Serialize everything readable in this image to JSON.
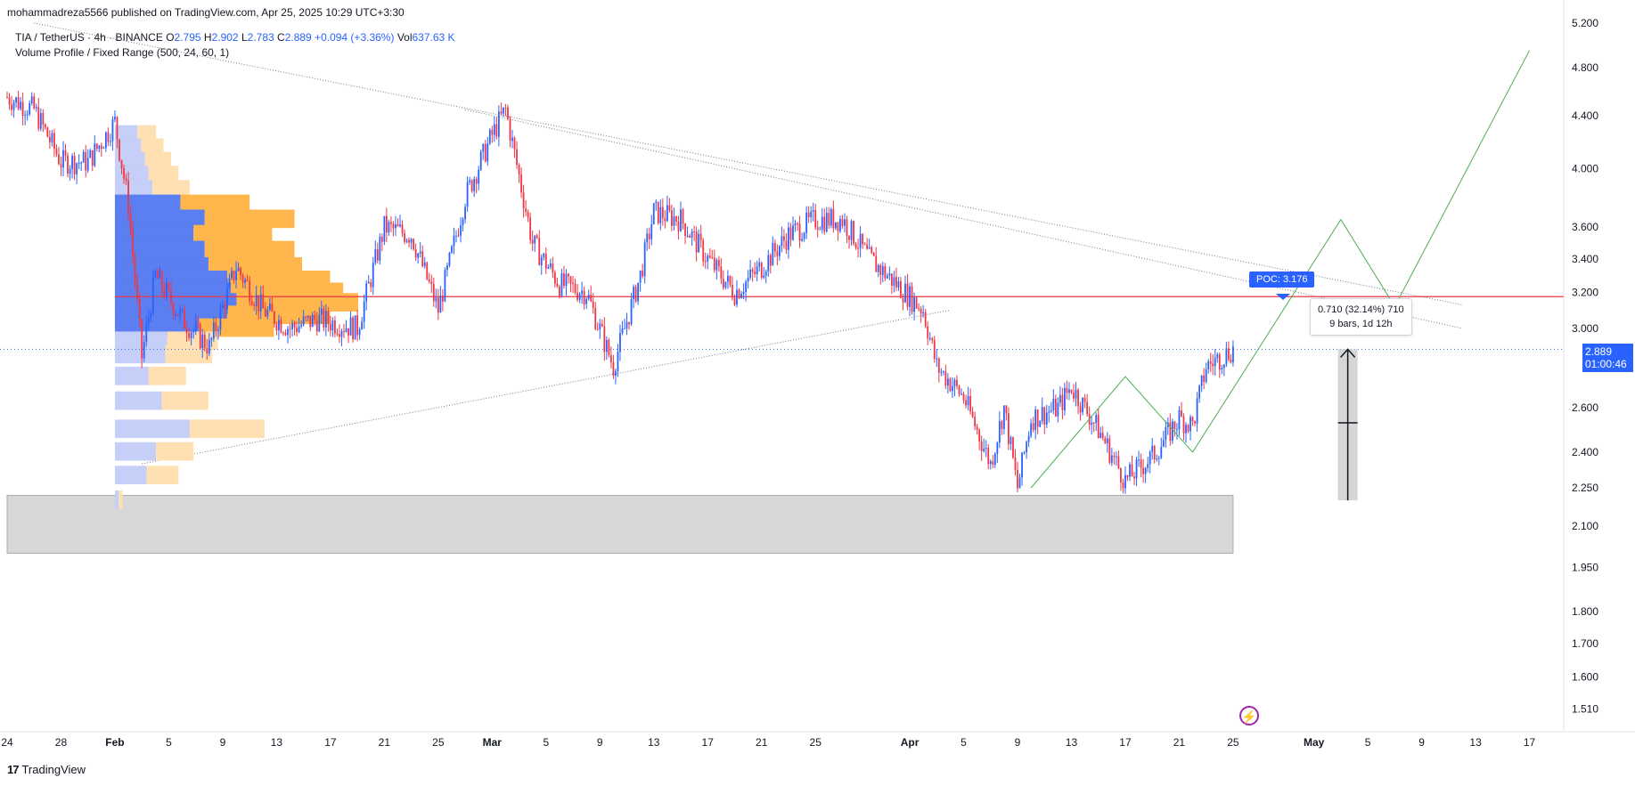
{
  "header": {
    "publisher": "mohammadreza5566 published on TradingView.com, Apr 25, 2025 10:29 UTC+3:30",
    "symbol": "TIA / TetherUS · 4h · BINANCE",
    "o_label": "O",
    "o_value": "2.795",
    "h_label": "H",
    "h_value": "2.902",
    "l_label": "L",
    "l_value": "2.783",
    "c_label": "C",
    "c_value": "2.889",
    "change": "+0.094 (+3.36%)",
    "vol_label": "Vol",
    "vol_value": "637.63 K",
    "indicator": "Volume Profile / Fixed Range (500, 24, 60, 1)"
  },
  "footer": {
    "brand": "TradingView"
  },
  "colors": {
    "up": "#2962ff",
    "down": "#f23645",
    "vp_up": "#5b7ff0",
    "vp_down": "#ffb74d",
    "vp_up_light": "#c5cff8",
    "vp_down_light": "#ffe0b2",
    "poc": "#f23645",
    "zig": "#4caf50",
    "zone": "#d1d1d1"
  },
  "labels": {
    "poc": "POC: 3.176",
    "measure_line1": "0.710 (32.14%) 710",
    "measure_line2": "9 bars, 1d 12h",
    "last_price": "2.889",
    "countdown": "01:00:46"
  },
  "chart_data": {
    "type": "candlestick",
    "symbol": "TIA / TetherUS",
    "interval": "4h",
    "y_scale": "log",
    "ylim": [
      1.45,
      5.25
    ],
    "y_ticks": [
      "5.200",
      "4.800",
      "4.400",
      "4.000",
      "3.600",
      "3.400",
      "3.200",
      "3.000",
      "2.600",
      "2.400",
      "2.250",
      "2.100",
      "1.950",
      "1.800",
      "1.700",
      "1.600",
      "1.510"
    ],
    "x_ticks": [
      "24",
      "28",
      "Feb",
      "5",
      "9",
      "13",
      "17",
      "21",
      "25",
      "Mar",
      "5",
      "9",
      "13",
      "17",
      "21",
      "25",
      "Apr",
      "5",
      "9",
      "13",
      "17",
      "21",
      "25",
      "May",
      "5",
      "9",
      "13",
      "17"
    ],
    "price_path": [
      {
        "t": "Jan 24",
        "p": 4.55
      },
      {
        "t": "Jan 26",
        "p": 4.45
      },
      {
        "t": "Jan 28",
        "p": 4.05
      },
      {
        "t": "Jan 30",
        "p": 4.05
      },
      {
        "t": "Feb 1",
        "p": 4.35
      },
      {
        "t": "Feb 2",
        "p": 3.75
      },
      {
        "t": "Feb 3",
        "p": 2.85
      },
      {
        "t": "Feb 4",
        "p": 3.3
      },
      {
        "t": "Feb 6",
        "p": 3.05
      },
      {
        "t": "Feb 8",
        "p": 2.9
      },
      {
        "t": "Feb 10",
        "p": 3.35
      },
      {
        "t": "Feb 12",
        "p": 3.1
      },
      {
        "t": "Feb 14",
        "p": 3.0
      },
      {
        "t": "Feb 16",
        "p": 3.05
      },
      {
        "t": "Feb 19",
        "p": 3.0
      },
      {
        "t": "Feb 21",
        "p": 3.6
      },
      {
        "t": "Feb 23",
        "p": 3.55
      },
      {
        "t": "Feb 25",
        "p": 3.1
      },
      {
        "t": "Feb 27",
        "p": 3.8
      },
      {
        "t": "Mar 1",
        "p": 4.25
      },
      {
        "t": "Mar 2",
        "p": 4.45
      },
      {
        "t": "Mar 4",
        "p": 3.5
      },
      {
        "t": "Mar 6",
        "p": 3.25
      },
      {
        "t": "Mar 8",
        "p": 3.2
      },
      {
        "t": "Mar 10",
        "p": 2.8
      },
      {
        "t": "Mar 12",
        "p": 3.3
      },
      {
        "t": "Mar 13",
        "p": 3.7
      },
      {
        "t": "Mar 15",
        "p": 3.65
      },
      {
        "t": "Mar 17",
        "p": 3.4
      },
      {
        "t": "Mar 19",
        "p": 3.2
      },
      {
        "t": "Mar 21",
        "p": 3.35
      },
      {
        "t": "Mar 23",
        "p": 3.55
      },
      {
        "t": "Mar 25",
        "p": 3.65
      },
      {
        "t": "Mar 27",
        "p": 3.65
      },
      {
        "t": "Mar 29",
        "p": 3.4
      },
      {
        "t": "Mar 31",
        "p": 3.25
      },
      {
        "t": "Apr 2",
        "p": 3.1
      },
      {
        "t": "Apr 3",
        "p": 2.8
      },
      {
        "t": "Apr 5",
        "p": 2.65
      },
      {
        "t": "Apr 7",
        "p": 2.35
      },
      {
        "t": "Apr 8",
        "p": 2.6
      },
      {
        "t": "Apr 9",
        "p": 2.25
      },
      {
        "t": "Apr 10",
        "p": 2.55
      },
      {
        "t": "Apr 12",
        "p": 2.6
      },
      {
        "t": "Apr 13",
        "p": 2.7
      },
      {
        "t": "Apr 15",
        "p": 2.5
      },
      {
        "t": "Apr 17",
        "p": 2.28
      },
      {
        "t": "Apr 19",
        "p": 2.38
      },
      {
        "t": "Apr 21",
        "p": 2.55
      },
      {
        "t": "Apr 22",
        "p": 2.52
      },
      {
        "t": "Apr 23",
        "p": 2.8
      },
      {
        "t": "Apr 25",
        "p": 2.889
      }
    ],
    "last_price": 2.889,
    "poc": 3.176,
    "support_zone": [
      2.0,
      2.22
    ],
    "projection_path": [
      {
        "t": "Apr 10",
        "p": 2.25
      },
      {
        "t": "Apr 17",
        "p": 2.75
      },
      {
        "t": "Apr 22",
        "p": 2.4
      },
      {
        "t": "May 3",
        "p": 3.65
      },
      {
        "t": "May 7",
        "p": 3.12
      },
      {
        "t": "May 17",
        "p": 4.95
      }
    ],
    "measure": {
      "change": 0.71,
      "percent": 32.14,
      "bars": 9
    },
    "volume_profile": [
      {
        "price": 4.25,
        "up": 0.12,
        "down": 0.1
      },
      {
        "price": 4.15,
        "up": 0.14,
        "down": 0.12
      },
      {
        "price": 4.05,
        "up": 0.16,
        "down": 0.14
      },
      {
        "price": 3.95,
        "up": 0.18,
        "down": 0.16
      },
      {
        "price": 3.85,
        "up": 0.2,
        "down": 0.2
      },
      {
        "price": 3.75,
        "up": 0.35,
        "down": 0.37
      },
      {
        "price": 3.65,
        "up": 0.48,
        "down": 0.48
      },
      {
        "price": 3.55,
        "up": 0.42,
        "down": 0.42
      },
      {
        "price": 3.45,
        "up": 0.48,
        "down": 0.48
      },
      {
        "price": 3.35,
        "up": 0.5,
        "down": 0.5
      },
      {
        "price": 3.27,
        "up": 0.6,
        "down": 0.55
      },
      {
        "price": 3.2,
        "up": 0.62,
        "down": 0.6
      },
      {
        "price": 3.14,
        "up": 0.65,
        "down": 0.65
      },
      {
        "price": 3.07,
        "up": 0.6,
        "down": 0.55
      },
      {
        "price": 3.0,
        "up": 0.45,
        "down": 0.4
      },
      {
        "price": 2.93,
        "up": 0.28,
        "down": 0.27
      },
      {
        "price": 2.86,
        "up": 0.27,
        "down": 0.25
      },
      {
        "price": 2.75,
        "up": 0.18,
        "down": 0.2
      },
      {
        "price": 2.63,
        "up": 0.25,
        "down": 0.25
      },
      {
        "price": 2.5,
        "up": 0.4,
        "down": 0.4
      },
      {
        "price": 2.4,
        "up": 0.22,
        "down": 0.2
      },
      {
        "price": 2.3,
        "up": 0.17,
        "down": 0.17
      },
      {
        "price": 2.2,
        "up": 0.02,
        "down": 0.02
      }
    ]
  }
}
